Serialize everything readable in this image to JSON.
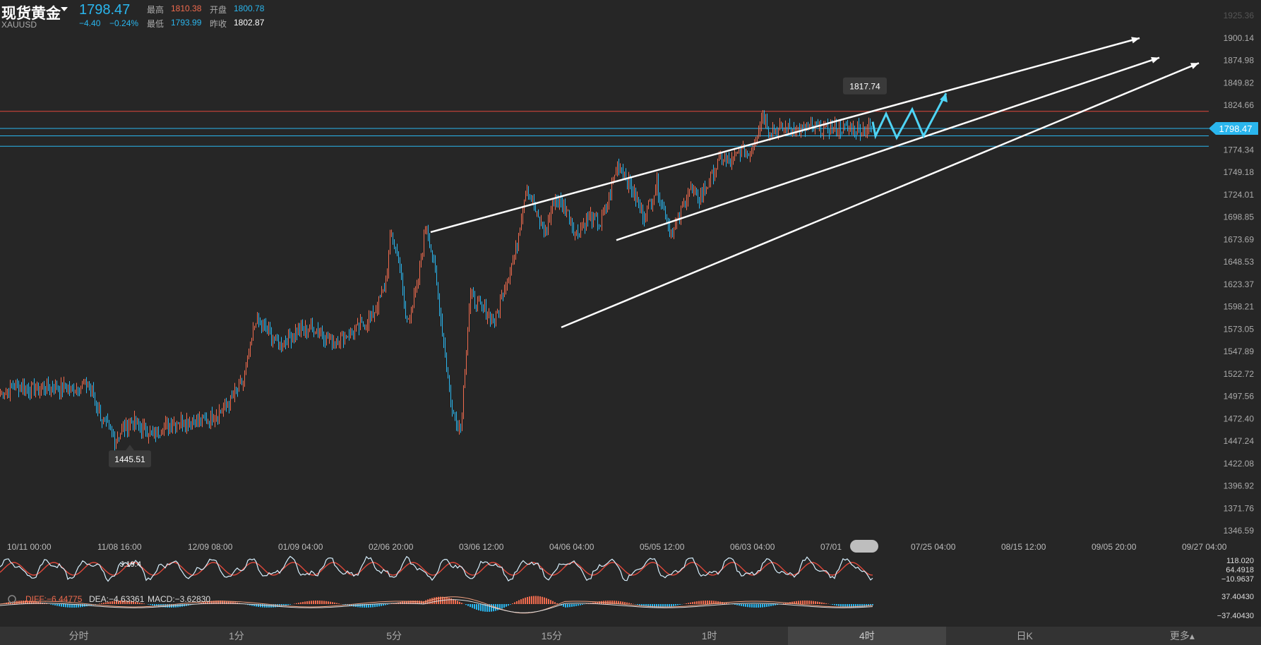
{
  "header": {
    "name": "现货黄金",
    "code": "XAUUSD",
    "price": "1798.47",
    "change": "−4.40",
    "change_pct": "−0.24%",
    "high_label": "最高",
    "high": "1810.38",
    "open_label": "开盘",
    "open": "1800.78",
    "low_label": "最低",
    "low": "1793.99",
    "prev_label": "昨收",
    "prev": "1802.87"
  },
  "colors": {
    "up": "#f06b4e",
    "down": "#2ab6ee",
    "bg": "#262626",
    "trend": "#ffffff",
    "forecast": "#4fd4f5"
  },
  "chart_data": {
    "type": "candlestick",
    "ylim": [
      1346.59,
      1925.36
    ],
    "yticks": [
      "1925.36",
      "1900.14",
      "1874.98",
      "1849.82",
      "1824.66",
      "1799.50",
      "1774.34",
      "1749.18",
      "1724.01",
      "1698.85",
      "1673.69",
      "1648.53",
      "1623.37",
      "1598.21",
      "1573.05",
      "1547.89",
      "1522.72",
      "1497.56",
      "1472.40",
      "1447.24",
      "1422.08",
      "1396.92",
      "1371.76",
      "1346.59"
    ],
    "xticks": [
      "10/11 00:00",
      "11/08 16:00",
      "12/09 08:00",
      "01/09 04:00",
      "02/06 20:00",
      "03/06 12:00",
      "04/06 04:00",
      "05/05 12:00",
      "06/03 04:00",
      "07/01",
      "07/25 04:00",
      "08/15 12:00",
      "09/05 20:00",
      "09/27 04:00"
    ],
    "keypoints": [
      [
        0,
        1500
      ],
      [
        25,
        1510
      ],
      [
        55,
        1505
      ],
      [
        80,
        1508
      ],
      [
        100,
        1505
      ],
      [
        125,
        1512
      ],
      [
        145,
        1470
      ],
      [
        162,
        1450
      ],
      [
        185,
        1470
      ],
      [
        215,
        1455
      ],
      [
        250,
        1470
      ],
      [
        290,
        1470
      ],
      [
        320,
        1485
      ],
      [
        345,
        1515
      ],
      [
        362,
        1585
      ],
      [
        378,
        1570
      ],
      [
        395,
        1555
      ],
      [
        420,
        1570
      ],
      [
        445,
        1575
      ],
      [
        470,
        1560
      ],
      [
        500,
        1570
      ],
      [
        525,
        1585
      ],
      [
        545,
        1620
      ],
      [
        553,
        1680
      ],
      [
        565,
        1650
      ],
      [
        575,
        1580
      ],
      [
        590,
        1615
      ],
      [
        603,
        1695
      ],
      [
        615,
        1640
      ],
      [
        628,
        1560
      ],
      [
        640,
        1480
      ],
      [
        652,
        1460
      ],
      [
        665,
        1610
      ],
      [
        690,
        1590
      ],
      [
        700,
        1580
      ],
      [
        715,
        1625
      ],
      [
        730,
        1660
      ],
      [
        745,
        1735
      ],
      [
        760,
        1700
      ],
      [
        772,
        1680
      ],
      [
        785,
        1720
      ],
      [
        800,
        1710
      ],
      [
        815,
        1680
      ],
      [
        835,
        1700
      ],
      [
        850,
        1690
      ],
      [
        862,
        1720
      ],
      [
        875,
        1760
      ],
      [
        895,
        1730
      ],
      [
        912,
        1700
      ],
      [
        930,
        1735
      ],
      [
        950,
        1680
      ],
      [
        962,
        1700
      ],
      [
        975,
        1730
      ],
      [
        990,
        1720
      ],
      [
        1005,
        1740
      ],
      [
        1020,
        1765
      ],
      [
        1035,
        1760
      ],
      [
        1050,
        1775
      ],
      [
        1060,
        1770
      ],
      [
        1070,
        1790
      ],
      [
        1080,
        1815
      ],
      [
        1088,
        1798
      ]
    ],
    "hlines": [
      {
        "value": 1817.74,
        "color": "#e0473a"
      },
      {
        "value": 1798.47,
        "color": "#2ab6ee"
      },
      {
        "value": 1790.2,
        "color": "#2ab6ee"
      },
      {
        "value": 1778.5,
        "color": "#2ab6ee"
      }
    ],
    "price_tag": "1798.47",
    "high_tag": "1817.74",
    "low_tag": "1445.51",
    "kdj": {
      "j_label": "J:19.4",
      "axis": [
        "118.020",
        "64.4918",
        "−10.9637"
      ]
    },
    "macd": {
      "diff": "DIFF:−6.44775",
      "dea": "DEA:−4.63361",
      "macd": "MACD:−3.62830",
      "axis": [
        "37.40430",
        "−37.40430"
      ]
    }
  },
  "tabs": [
    "分时",
    "1分",
    "5分",
    "15分",
    "1时",
    "4时",
    "日K",
    "更多▴"
  ],
  "active_tab": 5
}
